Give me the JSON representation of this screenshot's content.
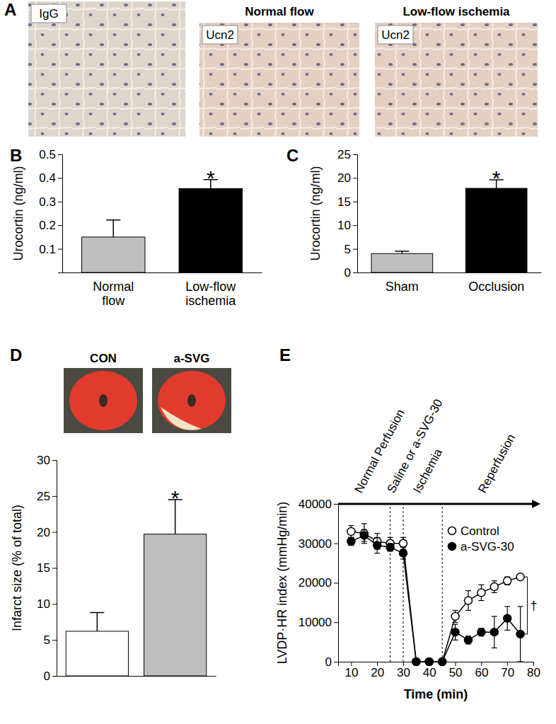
{
  "panel_a": {
    "title": "A",
    "images": [
      {
        "label": "IgG"
      },
      {
        "label": "Ucn2",
        "header": "Normal flow"
      },
      {
        "label": "Ucn2",
        "header": "Low-flow ischemia"
      }
    ]
  },
  "panel_d_images": {
    "labels": [
      "CON",
      "a-SVG"
    ]
  },
  "chart_data": [
    {
      "type": "bar",
      "title": "B",
      "y_label": "Urocortin (ng/ml)",
      "categories": [
        "Normal flow",
        "Low-flow ischemia"
      ],
      "values": [
        0.15,
        0.355
      ],
      "errors": [
        0.072,
        0.038
      ],
      "colors": [
        "#bfbfbf",
        "#000000"
      ],
      "ylim": [
        0,
        0.5
      ],
      "yticks": [
        0.1,
        0.2,
        0.3,
        0.4,
        0.5
      ],
      "annotation": "*"
    },
    {
      "type": "bar",
      "title": "C",
      "y_label": "Urocortin (ng/ml)",
      "categories": [
        "Sham",
        "Occlusion"
      ],
      "values": [
        4,
        17.8
      ],
      "errors": [
        0.5,
        1.8
      ],
      "colors": [
        "#bfbfbf",
        "#000000"
      ],
      "ylim": [
        0,
        25
      ],
      "yticks": [
        0,
        5,
        10,
        15,
        20,
        25
      ],
      "annotation": "*"
    },
    {
      "type": "bar",
      "title": "D",
      "y_label": "Infarct size (% of total)",
      "categories": [
        null,
        null
      ],
      "values": [
        6.2,
        19.7
      ],
      "errors": [
        2.6,
        4.8
      ],
      "colors": [
        "#ffffff",
        "#bfbfbf"
      ],
      "ylim": [
        0,
        30
      ],
      "yticks": [
        0,
        5,
        10,
        15,
        20,
        25,
        30
      ],
      "annotation": "*"
    },
    {
      "type": "line",
      "title": "E",
      "x_label": "Time (min)",
      "y_label": "LVDP·HR index (mmHg/min)",
      "x": [
        10,
        15,
        20,
        25,
        30,
        35,
        40,
        45,
        50,
        55,
        60,
        65,
        70,
        75
      ],
      "series": [
        {
          "name": "Control",
          "color": "#000000",
          "marker": "circle-open",
          "values": [
            33000,
            32500,
            30500,
            30000,
            30000,
            0,
            0,
            0,
            11500,
            15500,
            17500,
            19000,
            20500,
            21500
          ],
          "errors": [
            1500,
            2500,
            2000,
            1500,
            1500,
            0,
            0,
            0,
            1500,
            2500,
            2000,
            1500,
            1000,
            500
          ]
        },
        {
          "name": "a-SVG-30",
          "color": "#000000",
          "marker": "circle",
          "values": [
            30500,
            32000,
            29500,
            29000,
            27500,
            0,
            0,
            0,
            7500,
            5500,
            7500,
            7500,
            11000,
            7000
          ],
          "errors": [
            1000,
            1500,
            2000,
            1000,
            1500,
            0,
            0,
            0,
            2000,
            1000,
            1000,
            4000,
            3000,
            7000
          ]
        }
      ],
      "xlim": [
        5,
        80
      ],
      "xticks": [
        10,
        20,
        30,
        40,
        50,
        60,
        70,
        80
      ],
      "ylim": [
        0,
        40000
      ],
      "yticks": [
        0,
        10000,
        20000,
        30000,
        40000
      ],
      "phases": [
        "Normal Perfusion",
        "Saline or a-SVG-30",
        "Ischemia",
        "Reperfusion"
      ],
      "phase_lines": [
        25,
        30,
        45
      ],
      "legend": "upper right",
      "annotation": "†"
    }
  ]
}
